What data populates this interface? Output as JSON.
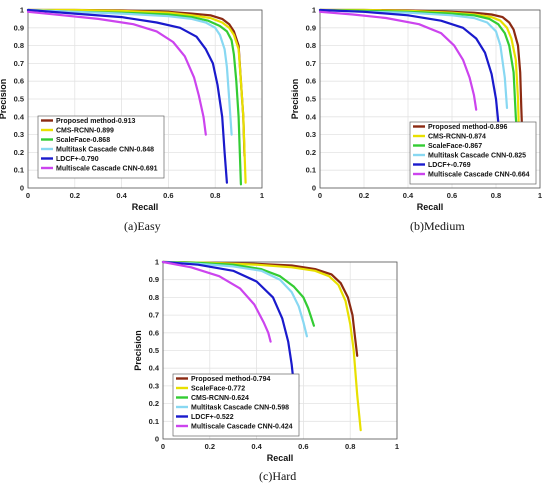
{
  "chart_data": [
    {
      "type": "line",
      "caption": "(a)Easy",
      "xlabel": "Recall",
      "ylabel": "Precision",
      "xlim": [
        0,
        1
      ],
      "ylim": [
        0,
        1
      ],
      "xticks": [
        "0",
        "0.2",
        "0.4",
        "0.6",
        "0.8",
        "1"
      ],
      "yticks": [
        "0",
        "0.1",
        "0.2",
        "0.3",
        "0.4",
        "0.5",
        "0.6",
        "0.7",
        "0.8",
        "0.9",
        "1"
      ],
      "grid": true,
      "legend_position": "bottom-left",
      "series": [
        {
          "name": "Proposed method-0.913",
          "color": "#8b2a12",
          "x": [
            0.0,
            0.2,
            0.4,
            0.6,
            0.7,
            0.78,
            0.83,
            0.86,
            0.88,
            0.9,
            0.91,
            0.92,
            0.925
          ],
          "y": [
            1.0,
            1.0,
            0.998,
            0.99,
            0.98,
            0.97,
            0.95,
            0.92,
            0.88,
            0.8,
            0.6,
            0.4,
            0.18
          ]
        },
        {
          "name": "CMS-RCNN-0.899",
          "color": "#e8e000",
          "x": [
            0.0,
            0.2,
            0.4,
            0.6,
            0.7,
            0.78,
            0.83,
            0.86,
            0.88,
            0.9,
            0.91,
            0.92,
            0.93
          ],
          "y": [
            1.0,
            1.0,
            0.995,
            0.985,
            0.97,
            0.955,
            0.93,
            0.9,
            0.86,
            0.78,
            0.6,
            0.4,
            0.03
          ]
        },
        {
          "name": "ScaleFace-0.868",
          "color": "#33cc33",
          "x": [
            0.0,
            0.2,
            0.4,
            0.6,
            0.7,
            0.77,
            0.82,
            0.85,
            0.87,
            0.88,
            0.89,
            0.9,
            0.91
          ],
          "y": [
            1.0,
            0.99,
            0.985,
            0.975,
            0.96,
            0.94,
            0.91,
            0.88,
            0.83,
            0.75,
            0.6,
            0.4,
            0.02
          ]
        },
        {
          "name": "Multitask Cascade CNN-0.848",
          "color": "#88d8f2",
          "x": [
            0.0,
            0.2,
            0.4,
            0.6,
            0.7,
            0.76,
            0.8,
            0.82,
            0.84,
            0.85,
            0.86,
            0.87
          ],
          "y": [
            1.0,
            0.99,
            0.98,
            0.965,
            0.95,
            0.93,
            0.9,
            0.86,
            0.78,
            0.68,
            0.5,
            0.3
          ]
        },
        {
          "name": "LDCF+-0.790",
          "color": "#1a1acc",
          "x": [
            0.0,
            0.2,
            0.4,
            0.55,
            0.65,
            0.72,
            0.76,
            0.79,
            0.81,
            0.83,
            0.84,
            0.85
          ],
          "y": [
            1.0,
            0.98,
            0.96,
            0.93,
            0.9,
            0.85,
            0.78,
            0.7,
            0.58,
            0.4,
            0.2,
            0.03
          ]
        },
        {
          "name": "Multiscale Cascade CNN-0.691",
          "color": "#cc44ee",
          "x": [
            0.0,
            0.15,
            0.3,
            0.45,
            0.55,
            0.62,
            0.67,
            0.71,
            0.73,
            0.75,
            0.76
          ],
          "y": [
            0.99,
            0.97,
            0.95,
            0.92,
            0.88,
            0.82,
            0.74,
            0.62,
            0.52,
            0.4,
            0.3
          ]
        }
      ]
    },
    {
      "type": "line",
      "caption": "(b)Medium",
      "xlabel": "Recall",
      "ylabel": "Precision",
      "xlim": [
        0,
        1
      ],
      "ylim": [
        0,
        1
      ],
      "xticks": [
        "0",
        "0.2",
        "0.4",
        "0.6",
        "0.8",
        "1"
      ],
      "yticks": [
        "0",
        "0.1",
        "0.2",
        "0.3",
        "0.4",
        "0.5",
        "0.6",
        "0.7",
        "0.8",
        "0.9",
        "1"
      ],
      "grid": true,
      "legend_position": "bottom-right",
      "series": [
        {
          "name": "Proposed method-0.896",
          "color": "#8b2a12",
          "x": [
            0.0,
            0.2,
            0.4,
            0.6,
            0.7,
            0.78,
            0.83,
            0.86,
            0.88,
            0.9,
            0.91,
            0.915,
            0.92
          ],
          "y": [
            1.0,
            1.0,
            0.998,
            0.99,
            0.985,
            0.975,
            0.96,
            0.93,
            0.89,
            0.8,
            0.65,
            0.45,
            0.28
          ]
        },
        {
          "name": "CMS-RCNN-0.874",
          "color": "#e8e000",
          "x": [
            0.0,
            0.2,
            0.4,
            0.6,
            0.7,
            0.78,
            0.82,
            0.85,
            0.87,
            0.89,
            0.9,
            0.91
          ],
          "y": [
            1.0,
            1.0,
            0.995,
            0.985,
            0.975,
            0.96,
            0.94,
            0.9,
            0.84,
            0.72,
            0.5,
            0.05
          ]
        },
        {
          "name": "ScaleFace-0.867",
          "color": "#33cc33",
          "x": [
            0.0,
            0.2,
            0.4,
            0.6,
            0.7,
            0.77,
            0.81,
            0.84,
            0.86,
            0.88,
            0.89,
            0.91
          ],
          "y": [
            1.0,
            0.995,
            0.99,
            0.98,
            0.97,
            0.95,
            0.92,
            0.87,
            0.8,
            0.65,
            0.4,
            0.03
          ]
        },
        {
          "name": "Multitask Cascade CNN-0.825",
          "color": "#88d8f2",
          "x": [
            0.0,
            0.2,
            0.4,
            0.6,
            0.7,
            0.76,
            0.8,
            0.82,
            0.84,
            0.85
          ],
          "y": [
            1.0,
            0.99,
            0.985,
            0.97,
            0.955,
            0.93,
            0.88,
            0.8,
            0.62,
            0.45
          ]
        },
        {
          "name": "LDCF+-0.769",
          "color": "#1a1acc",
          "x": [
            0.0,
            0.2,
            0.4,
            0.55,
            0.65,
            0.71,
            0.75,
            0.78,
            0.8,
            0.82,
            0.83
          ],
          "y": [
            1.0,
            0.99,
            0.97,
            0.94,
            0.9,
            0.84,
            0.76,
            0.64,
            0.5,
            0.25,
            0.05
          ]
        },
        {
          "name": "Multiscale Cascade CNN-0.664",
          "color": "#cc44ee",
          "x": [
            0.0,
            0.15,
            0.3,
            0.45,
            0.55,
            0.61,
            0.65,
            0.68,
            0.7,
            0.71
          ],
          "y": [
            0.99,
            0.975,
            0.955,
            0.92,
            0.87,
            0.8,
            0.72,
            0.62,
            0.52,
            0.44
          ]
        }
      ]
    },
    {
      "type": "line",
      "caption": "(c)Hard",
      "xlabel": "Recall",
      "ylabel": "Precision",
      "xlim": [
        0,
        1
      ],
      "ylim": [
        0,
        1
      ],
      "xticks": [
        "0",
        "0.2",
        "0.4",
        "0.6",
        "0.8",
        "1"
      ],
      "yticks": [
        "0",
        "0.1",
        "0.2",
        "0.3",
        "0.4",
        "0.5",
        "0.6",
        "0.7",
        "0.8",
        "0.9",
        "1"
      ],
      "grid": true,
      "legend_position": "bottom-left",
      "series": [
        {
          "name": "Proposed method-0.794",
          "color": "#8b2a12",
          "x": [
            0.0,
            0.2,
            0.4,
            0.55,
            0.65,
            0.72,
            0.76,
            0.79,
            0.81,
            0.82,
            0.83
          ],
          "y": [
            1.0,
            0.995,
            0.99,
            0.98,
            0.96,
            0.93,
            0.88,
            0.8,
            0.7,
            0.58,
            0.47
          ]
        },
        {
          "name": "ScaleFace-0.772",
          "color": "#e8e000",
          "x": [
            0.0,
            0.2,
            0.4,
            0.55,
            0.65,
            0.71,
            0.75,
            0.78,
            0.8,
            0.815,
            0.83,
            0.845
          ],
          "y": [
            1.0,
            0.995,
            0.985,
            0.97,
            0.95,
            0.92,
            0.87,
            0.78,
            0.65,
            0.5,
            0.25,
            0.05
          ]
        },
        {
          "name": "CMS-RCNN-0.624",
          "color": "#33cc33",
          "x": [
            0.0,
            0.15,
            0.3,
            0.42,
            0.5,
            0.56,
            0.6,
            0.62,
            0.635,
            0.645
          ],
          "y": [
            1.0,
            0.995,
            0.985,
            0.96,
            0.92,
            0.86,
            0.8,
            0.74,
            0.68,
            0.64
          ]
        },
        {
          "name": "Multitask Cascade CNN-0.598",
          "color": "#88d8f2",
          "x": [
            0.0,
            0.15,
            0.3,
            0.42,
            0.5,
            0.55,
            0.58,
            0.6,
            0.615
          ],
          "y": [
            1.0,
            0.99,
            0.975,
            0.95,
            0.9,
            0.83,
            0.75,
            0.66,
            0.58
          ]
        },
        {
          "name": "LDCF+-0.522",
          "color": "#1a1acc",
          "x": [
            0.0,
            0.15,
            0.3,
            0.4,
            0.47,
            0.51,
            0.535,
            0.55,
            0.56
          ],
          "y": [
            1.0,
            0.985,
            0.95,
            0.89,
            0.8,
            0.68,
            0.55,
            0.42,
            0.3
          ]
        },
        {
          "name": "Multiscale Cascade CNN-0.424",
          "color": "#cc44ee",
          "x": [
            0.0,
            0.12,
            0.24,
            0.33,
            0.39,
            0.43,
            0.45,
            0.46
          ],
          "y": [
            1.0,
            0.97,
            0.92,
            0.85,
            0.76,
            0.66,
            0.6,
            0.55
          ]
        }
      ]
    }
  ]
}
